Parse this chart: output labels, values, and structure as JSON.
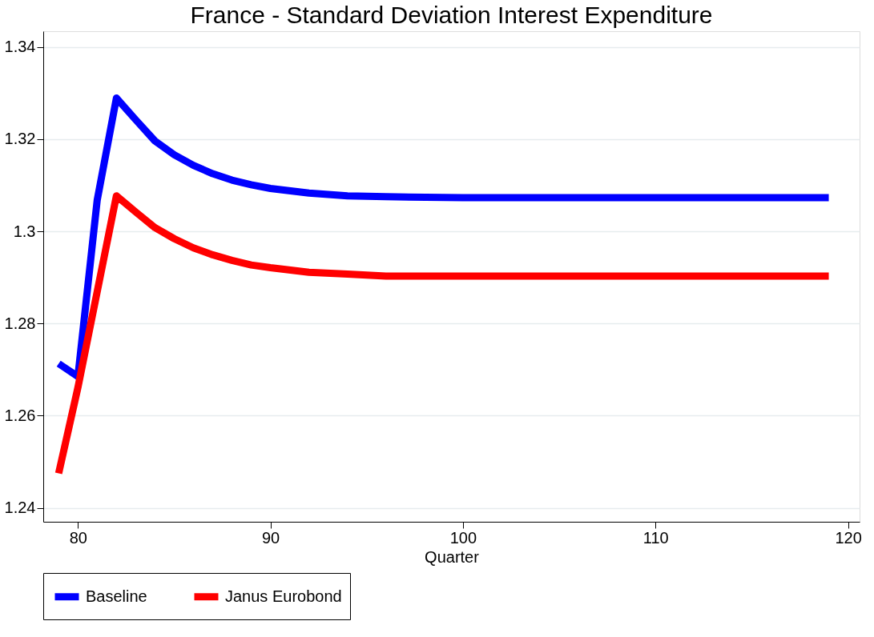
{
  "chart_data": {
    "type": "line",
    "title": "France - Standard Deviation Interest Expenditure",
    "xlabel": "Quarter",
    "xlim": [
      78.2,
      120.6
    ],
    "xticks": [
      80,
      90,
      100,
      110,
      120
    ],
    "ylim": [
      1.237,
      1.3434
    ],
    "yticks": [
      1.24,
      1.26,
      1.28,
      1.3,
      1.32,
      1.34
    ],
    "grid": "y",
    "legend": "bottom",
    "marker": "none",
    "line_style": "solid",
    "series": [
      {
        "name": "Baseline",
        "color": "#0000ff",
        "x": [
          79,
          80,
          81,
          82,
          83,
          84,
          85,
          86,
          87,
          88,
          89,
          90,
          92,
          94,
          96,
          100,
          119
        ],
        "values": [
          1.2713,
          1.2685,
          1.3067,
          1.3289,
          1.3242,
          1.3196,
          1.3166,
          1.3143,
          1.3125,
          1.3111,
          1.3101,
          1.3093,
          1.3083,
          1.3077,
          1.3075,
          1.3073,
          1.3073
        ]
      },
      {
        "name": "Janus Eurobond",
        "color": "#ff0000",
        "x": [
          79,
          80,
          81,
          82,
          83,
          84,
          85,
          86,
          87,
          88,
          89,
          90,
          92,
          94,
          96,
          100,
          119
        ],
        "values": [
          1.2475,
          1.2661,
          1.2869,
          1.3077,
          1.3042,
          1.3008,
          1.2984,
          1.2964,
          1.2949,
          1.2937,
          1.2927,
          1.2921,
          1.2911,
          1.2907,
          1.2903,
          1.2903,
          1.2903
        ]
      }
    ]
  }
}
